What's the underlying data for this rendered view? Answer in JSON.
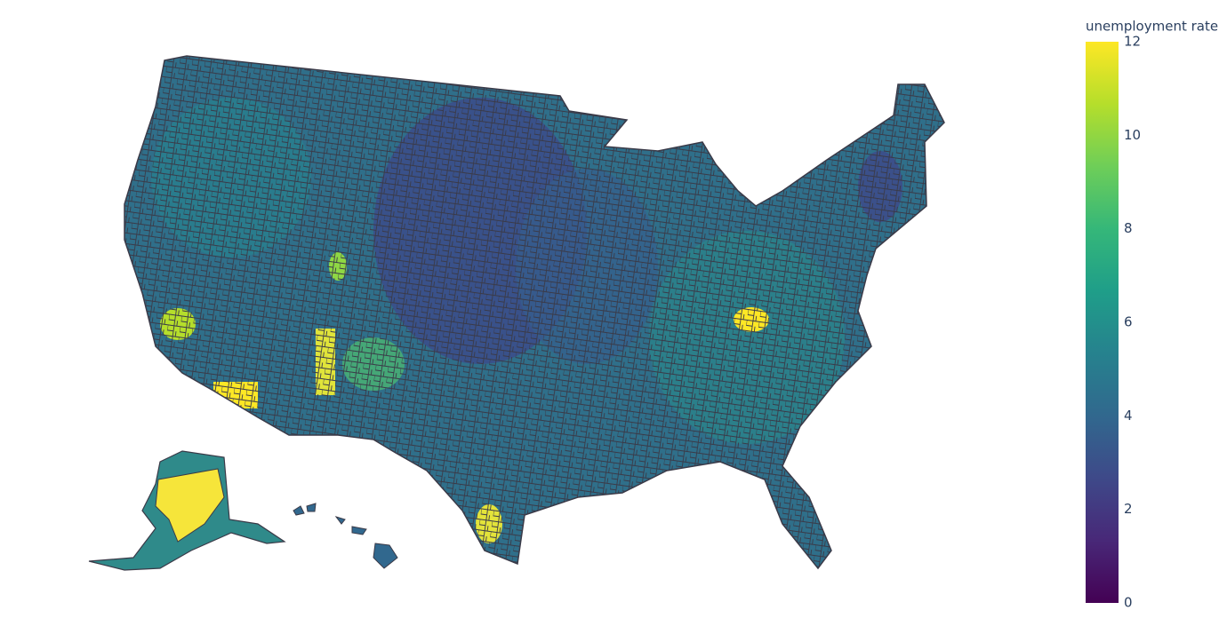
{
  "chart_data": {
    "type": "choropleth",
    "colorbar_title": "unemployment rate",
    "zlim": [
      0,
      12
    ],
    "zticks": [
      0,
      2,
      4,
      6,
      8,
      10,
      12
    ],
    "colorscale": [
      "#440154",
      "#482878",
      "#3e4989",
      "#31688e",
      "#26828e",
      "#1f9e89",
      "#35b779",
      "#6ece58",
      "#b5de2b",
      "#fde725"
    ]
  }
}
